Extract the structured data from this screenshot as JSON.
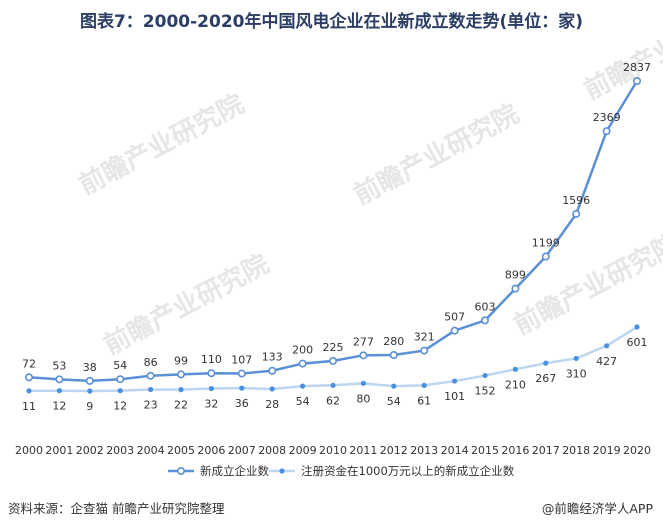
{
  "title": "图表7：2000-2020年中国风电企业在业新成立数走势(单位：家)",
  "footer": {
    "source": "资料来源：企查猫 前瞻产业研究院整理",
    "credit": "@前瞻经济学人APP"
  },
  "watermark": "前瞻产业研究院",
  "colors": {
    "series1": "#5b8fd6",
    "series2": "#bcd6f2",
    "marker2": "#4a8fe0",
    "title": "#2c3e66"
  },
  "chart_data": {
    "type": "line",
    "title": "图表7：2000-2020年中国风电企业在业新成立数走势(单位：家)",
    "xlabel": "",
    "ylabel": "",
    "grid": false,
    "legend_position": "bottom",
    "x": [
      "2000",
      "2001",
      "2002",
      "2003",
      "2004",
      "2005",
      "2006",
      "2007",
      "2008",
      "2009",
      "2010",
      "2011",
      "2012",
      "2013",
      "2014",
      "2015",
      "2016",
      "2017",
      "2018",
      "2019",
      "2020"
    ],
    "series": [
      {
        "name": "新成立企业数",
        "values": [
          72,
          53,
          38,
          54,
          86,
          99,
          110,
          107,
          133,
          200,
          225,
          277,
          280,
          321,
          507,
          603,
          899,
          1199,
          1596,
          2369,
          2837
        ]
      },
      {
        "name": "注册资金在1000万元以上的新成立企业数",
        "values": [
          11,
          12,
          9,
          12,
          23,
          22,
          32,
          36,
          28,
          54,
          62,
          80,
          54,
          61,
          101,
          152,
          210,
          267,
          310,
          427,
          601
        ]
      }
    ],
    "ylim": [
      0,
      2900
    ]
  }
}
